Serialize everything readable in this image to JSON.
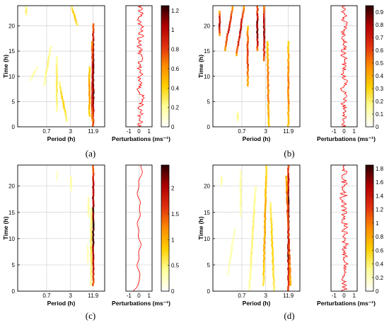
{
  "figure": {
    "colors": {
      "colormap": [
        "#ffffff",
        "#ffff99",
        "#ffd000",
        "#ff8c00",
        "#e03010",
        "#b00000",
        "#2a0000"
      ],
      "line": "#ff0000",
      "grid": "#d0d0d0"
    },
    "panels": [
      {
        "id": "a",
        "label": "(a)",
        "xlabel": "Period (h)",
        "ylabel": "Time (h)",
        "pert_label": "Perturbations (ms⁻¹)",
        "colorbar": {
          "ticks": [
            "0",
            "0.2",
            "0.4",
            "0.6",
            "0.8",
            "1",
            "1.2"
          ],
          "max": 1.25
        }
      },
      {
        "id": "b",
        "label": "(b)",
        "xlabel": "Period (h)",
        "ylabel": "Time (h)",
        "pert_label": "Perturbations (ms⁻¹)",
        "colorbar": {
          "ticks": [
            "0",
            "0.1",
            "0.2",
            "0.3",
            "0.4",
            "0.5",
            "0.6",
            "0.7",
            "0.8",
            "0.9"
          ],
          "max": 0.95
        }
      },
      {
        "id": "c",
        "label": "(c)",
        "xlabel": "Period (h)",
        "ylabel": "Time (h)",
        "pert_label": "Perturbations (ms⁻¹)",
        "colorbar": {
          "ticks": [
            "0",
            "0.5",
            "1",
            "1.5",
            "2"
          ],
          "max": 2.45
        }
      },
      {
        "id": "d",
        "label": "(d)",
        "xlabel": "Period (h)",
        "ylabel": "Time (h)",
        "pert_label": "Perturbations (ms⁻¹)",
        "colorbar": {
          "ticks": [
            "0",
            "0.2",
            "0.4",
            "0.6",
            "0.8",
            "1",
            "1.2",
            "1.4",
            "1.6",
            "1.8"
          ],
          "max": 1.85
        }
      }
    ]
  },
  "chart_data": [
    {
      "type": "heatmap",
      "panel": "a",
      "title": "",
      "xlabel": "Period (h)",
      "ylabel": "Time (h)",
      "x_scale": "log",
      "x_ticks": [
        "0.7",
        "3",
        "11.9"
      ],
      "x_tick_values": [
        0.7,
        3,
        11.9
      ],
      "xlim": [
        0.12,
        24
      ],
      "y_ticks": [
        "0",
        "5",
        "10",
        "15",
        "20"
      ],
      "ylim": [
        0,
        24
      ],
      "grid": true,
      "ridges": [
        {
          "x_h": 11.9,
          "t": [
            0,
            20.5
          ],
          "v": 1.2
        },
        {
          "x_h": 11.3,
          "t": [
            1,
            17
          ],
          "v": 1.0
        },
        {
          "x_h": 9.5,
          "t": [
            2,
            12
          ],
          "v": 0.6
        },
        {
          "x_h": [
            4.5,
            3.2
          ],
          "t": [
            20,
            24
          ],
          "v": 0.45
        },
        {
          "x_h": [
            2.4,
            1.5
          ],
          "t": [
            1,
            9
          ],
          "v": 0.4
        },
        {
          "x_h": 1.3,
          "t": [
            3,
            14
          ],
          "v": 0.3
        },
        {
          "x_h": [
            0.6,
            0.9
          ],
          "t": [
            8,
            16
          ],
          "v": 0.25
        },
        {
          "x_h": [
            0.25,
            0.4
          ],
          "t": [
            9,
            12
          ],
          "v": 0.2
        },
        {
          "x_h": 0.2,
          "t": [
            22,
            24
          ],
          "v": 0.3
        }
      ],
      "perturbation_series": {
        "xlabel": "Perturbations (ms⁻¹)",
        "xlim": [
          -1.3,
          1.3
        ],
        "x_ticks": [
          "-1",
          "0",
          "1"
        ],
        "ylim": [
          0,
          24
        ],
        "t_step": 0.2,
        "mean": 0.15,
        "amplitude": 0.3
      },
      "colorbar": {
        "ticks": [
          "0",
          "0.2",
          "0.4",
          "0.6",
          "0.8",
          "1",
          "1.2"
        ],
        "range": [
          0,
          1.25
        ]
      }
    },
    {
      "type": "heatmap",
      "panel": "b",
      "title": "",
      "xlabel": "Period (h)",
      "ylabel": "Time (h)",
      "x_scale": "log",
      "x_ticks": [
        "0.7",
        "3",
        "11.9"
      ],
      "x_tick_values": [
        0.7,
        3,
        11.9
      ],
      "xlim": [
        0.12,
        24
      ],
      "y_ticks": [
        "0",
        "5",
        "10",
        "15",
        "20"
      ],
      "ylim": [
        0,
        24
      ],
      "grid": true,
      "ridges": [
        {
          "x_h": 11.9,
          "t": [
            0,
            17
          ],
          "v": 0.5
        },
        {
          "x_h": [
            3.6,
            3.3
          ],
          "t": [
            0,
            17
          ],
          "v": 0.5
        },
        {
          "x_h": 2.7,
          "t": [
            13,
            24
          ],
          "v": 0.8
        },
        {
          "x_h": 1.8,
          "t": [
            15,
            24
          ],
          "v": 0.85
        },
        {
          "x_h": 1.0,
          "t": [
            8,
            20
          ],
          "v": 0.6
        },
        {
          "x_h": [
            0.5,
            0.8
          ],
          "t": [
            14,
            24
          ],
          "v": 0.7
        },
        {
          "x_h": [
            0.25,
            0.4
          ],
          "t": [
            15,
            24
          ],
          "v": 0.7
        },
        {
          "x_h": 0.18,
          "t": [
            18,
            23
          ],
          "v": 0.75
        },
        {
          "x_h": 0.55,
          "t": [
            1,
            3
          ],
          "v": 0.2
        }
      ],
      "perturbation_series": {
        "xlabel": "Perturbations (ms⁻¹)",
        "xlim": [
          -1.3,
          1.3
        ],
        "x_ticks": [
          "-1",
          "0",
          "1"
        ],
        "ylim": [
          0,
          24
        ],
        "t_step": 0.2,
        "mean": 0.0,
        "amplitude": 0.28
      },
      "colorbar": {
        "ticks": [
          "0",
          "0.1",
          "0.2",
          "0.3",
          "0.4",
          "0.5",
          "0.6",
          "0.7",
          "0.8",
          "0.9"
        ],
        "range": [
          0,
          0.95
        ]
      }
    },
    {
      "type": "heatmap",
      "panel": "c",
      "title": "",
      "xlabel": "Period (h)",
      "ylabel": "Time (h)",
      "x_scale": "log",
      "x_ticks": [
        "0.7",
        "3",
        "11.9"
      ],
      "x_tick_values": [
        0.7,
        3,
        11.9
      ],
      "xlim": [
        0.12,
        24
      ],
      "y_ticks": [
        "0",
        "5",
        "10",
        "15",
        "20"
      ],
      "ylim": [
        0,
        24
      ],
      "grid": true,
      "ridges": [
        {
          "x_h": 11.9,
          "t": [
            1,
            24
          ],
          "v": 2.3
        },
        {
          "x_h": 10.5,
          "t": [
            1,
            16
          ],
          "v": 0.6
        },
        {
          "x_h": 9.0,
          "t": [
            14,
            18
          ],
          "v": 0.4
        },
        {
          "x_h": 3.1,
          "t": [
            19,
            22
          ],
          "v": 0.4
        },
        {
          "x_h": 1.3,
          "t": [
            21,
            23
          ],
          "v": 0.25
        },
        {
          "x_h": 8.5,
          "t": [
            5,
            9
          ],
          "v": 0.3
        }
      ],
      "perturbation_series": {
        "xlabel": "Perturbations (ms⁻¹)",
        "xlim": [
          -1.3,
          1.3
        ],
        "x_ticks": [
          "-1",
          "0",
          "1"
        ],
        "ylim": [
          0,
          24
        ],
        "t_step": 0.2,
        "mean": 0.0,
        "amplitude": 0.12,
        "smooth": true
      },
      "colorbar": {
        "ticks": [
          "0",
          "0.5",
          "1",
          "1.5",
          "2"
        ],
        "range": [
          0,
          2.45
        ]
      }
    },
    {
      "type": "heatmap",
      "panel": "d",
      "title": "",
      "xlabel": "Period (h)",
      "ylabel": "Time (h)",
      "x_scale": "log",
      "x_ticks": [
        "0.7",
        "3",
        "11.9"
      ],
      "x_tick_values": [
        0.7,
        3,
        11.9
      ],
      "xlim": [
        0.12,
        24
      ],
      "y_ticks": [
        "0",
        "5",
        "10",
        "15",
        "20"
      ],
      "ylim": [
        0,
        24
      ],
      "grid": true,
      "ridges": [
        {
          "x_h": 11.9,
          "t": [
            0,
            24
          ],
          "v": 1.8
        },
        {
          "x_h": [
            13.5,
            10.5
          ],
          "t": [
            1,
            22
          ],
          "v": 1.2
        },
        {
          "x_h": [
            5.0,
            4.0
          ],
          "t": [
            0,
            17
          ],
          "v": 0.6
        },
        {
          "x_h": [
            2.6,
            3.1
          ],
          "t": [
            1,
            24
          ],
          "v": 0.8
        },
        {
          "x_h": [
            1.1,
            1.6
          ],
          "t": [
            0,
            20
          ],
          "v": 0.4
        },
        {
          "x_h": 0.65,
          "t": [
            14,
            23
          ],
          "v": 0.3
        },
        {
          "x_h": [
            0.3,
            0.45
          ],
          "t": [
            3,
            12
          ],
          "v": 0.25
        },
        {
          "x_h": 0.2,
          "t": [
            20,
            22
          ],
          "v": 0.3
        }
      ],
      "perturbation_series": {
        "xlabel": "Perturbations (ms⁻¹)",
        "xlim": [
          -1.3,
          1.3
        ],
        "x_ticks": [
          "-1",
          "0",
          "1"
        ],
        "ylim": [
          0,
          24
        ],
        "t_step": 0.2,
        "mean": 0.0,
        "amplitude": 0.35
      },
      "colorbar": {
        "ticks": [
          "0",
          "0.2",
          "0.4",
          "0.6",
          "0.8",
          "1",
          "1.2",
          "1.4",
          "1.6",
          "1.8"
        ],
        "range": [
          0,
          1.85
        ]
      }
    }
  ]
}
